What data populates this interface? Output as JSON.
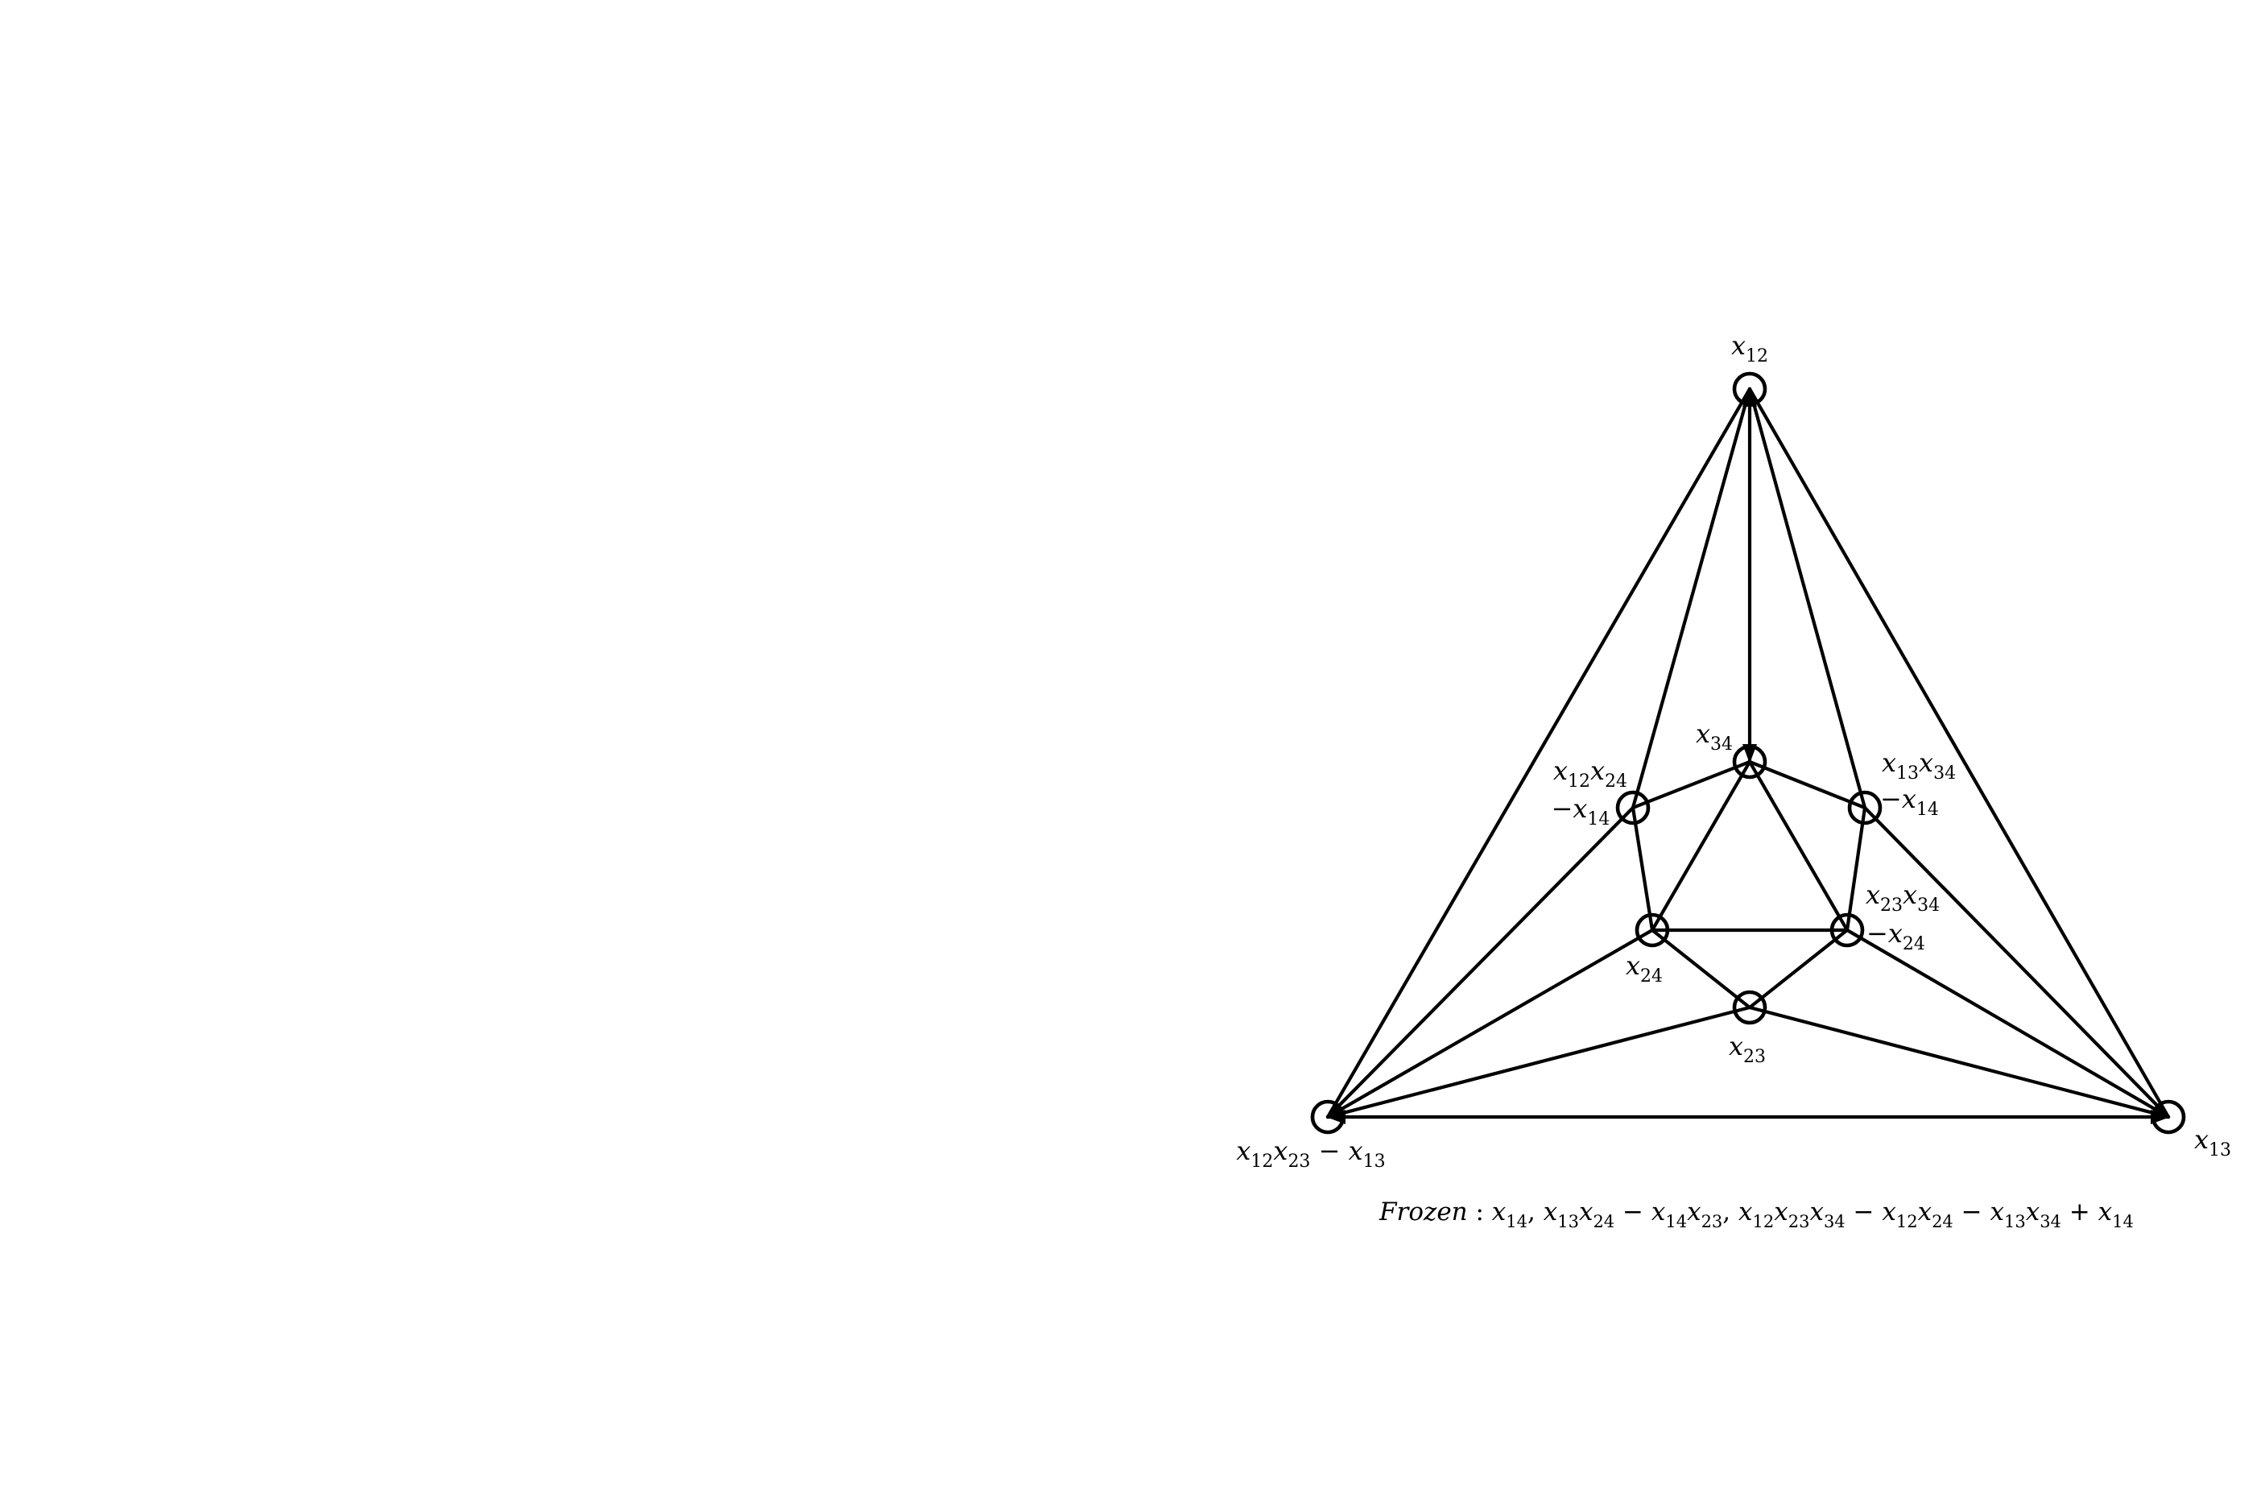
{
  "nodes": [
    {
      "id": "n12",
      "label": "x_{12}",
      "label2": ""
    },
    {
      "id": "n13",
      "label": "x_{13}",
      "label2": ""
    },
    {
      "id": "nBL",
      "label": "x_{12}x_{23} − x_{13}",
      "label2": ""
    },
    {
      "id": "n34",
      "label": "x_{34}",
      "label2": ""
    },
    {
      "id": "nL",
      "label": "x_{12}x_{24}",
      "label2": "−x_{14}"
    },
    {
      "id": "nR",
      "label": "x_{13}x_{34}",
      "label2": "−x_{14}"
    },
    {
      "id": "n24",
      "label": "x_{24}",
      "label2": ""
    },
    {
      "id": "nR2",
      "label": "x_{23}x_{34}",
      "label2": "−x_{24}"
    },
    {
      "id": "n23",
      "label": "x_{23}",
      "label2": ""
    }
  ],
  "edges": [
    [
      "n12",
      "nBL"
    ],
    [
      "n12",
      "n13"
    ],
    [
      "nBL",
      "n13"
    ],
    [
      "n12",
      "n34"
    ],
    [
      "n12",
      "nL"
    ],
    [
      "n12",
      "nR"
    ],
    [
      "n34",
      "nL"
    ],
    [
      "n34",
      "nR"
    ],
    [
      "n34",
      "n24"
    ],
    [
      "n34",
      "nR2"
    ],
    [
      "nL",
      "n24"
    ],
    [
      "nR",
      "nR2"
    ],
    [
      "n24",
      "nR2"
    ],
    [
      "n24",
      "n23"
    ],
    [
      "nR2",
      "n23"
    ],
    [
      "nBL",
      "nL"
    ],
    [
      "nBL",
      "n24"
    ],
    [
      "nBL",
      "n23"
    ],
    [
      "n13",
      "nR"
    ],
    [
      "n13",
      "nR2"
    ],
    [
      "n13",
      "n23"
    ]
  ],
  "arrowheads": [
    {
      "node": "n12",
      "from": "n34"
    },
    {
      "node": "n34",
      "from": "n12"
    },
    {
      "node": "nBL",
      "from": "n13"
    },
    {
      "node": "n13",
      "from": "nBL"
    }
  ],
  "frozen": {
    "lead": "Frozen",
    "colon": " : ",
    "items": [
      "x_{14}",
      "x_{13}x_{24} − x_{14}x_{23}",
      "x_{12}x_{23}x_{34} − x_{12}x_{24} − x_{13}x_{34} + x_{14}"
    ],
    "separator": ", "
  }
}
